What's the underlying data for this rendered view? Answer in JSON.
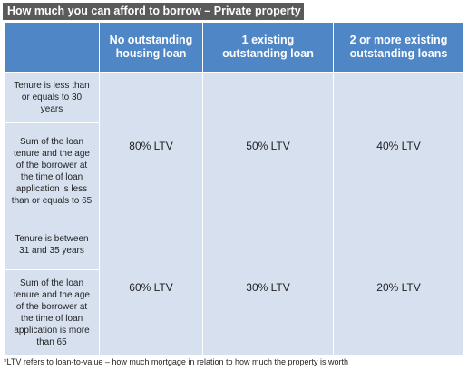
{
  "title": "How much you can afford to borrow – Private property",
  "table": {
    "headers": [
      "No outstanding housing loan",
      "1 existing outstanding loan",
      "2 or more existing outstanding loans"
    ],
    "groups": [
      {
        "criteria": [
          "Tenure is less than or equals to 30 years",
          "Sum of the loan tenure and the age of the borrower at the time of loan application is less than or equals to 65"
        ],
        "values": [
          "80% LTV",
          "50% LTV",
          "40% LTV"
        ]
      },
      {
        "criteria": [
          "Tenure is between 31 and 35 years",
          "Sum of the loan tenure and the age of the borrower at the time of loan application is more than 65"
        ],
        "values": [
          "60% LTV",
          "30% LTV",
          "20% LTV"
        ]
      }
    ]
  },
  "footnote": "*LTV refers to loan-to-value – how much mortgage in relation to how much the property is worth",
  "colors": {
    "title_bg": "#5a5a5a",
    "header_bg": "#4f86c6",
    "cell_bg": "#d6e0ef"
  }
}
